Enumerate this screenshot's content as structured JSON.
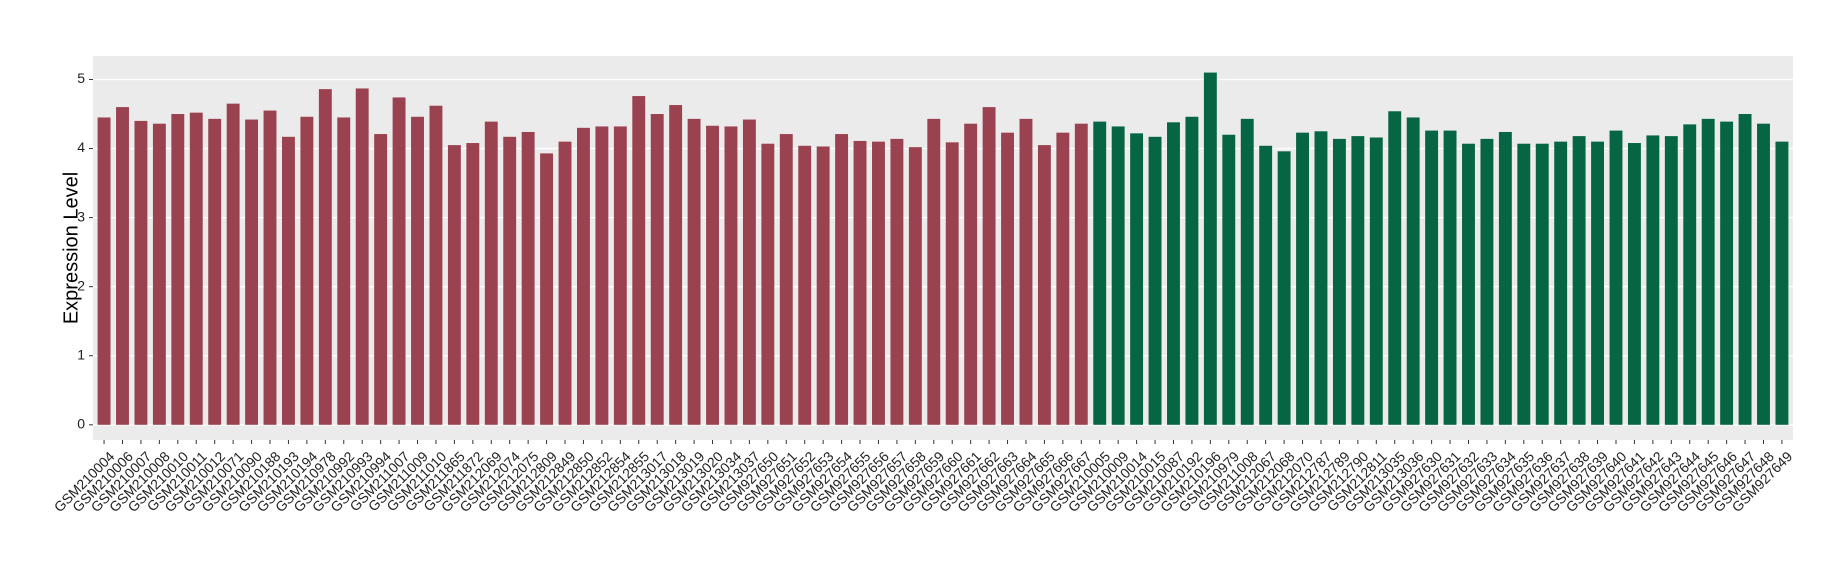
{
  "chart_data": {
    "type": "bar",
    "y_label": "Expression Level",
    "categories": [
      "GSM210004",
      "GSM210006",
      "GSM210007",
      "GSM210008",
      "GSM210010",
      "GSM210011",
      "GSM210012",
      "GSM210071",
      "GSM210090",
      "GSM210188",
      "GSM210193",
      "GSM210194",
      "GSM210978",
      "GSM210992",
      "GSM210993",
      "GSM210994",
      "GSM211007",
      "GSM211009",
      "GSM211010",
      "GSM211865",
      "GSM211872",
      "GSM212069",
      "GSM212074",
      "GSM212075",
      "GSM212809",
      "GSM212849",
      "GSM212850",
      "GSM212852",
      "GSM212854",
      "GSM212855",
      "GSM213017",
      "GSM213018",
      "GSM213019",
      "GSM213020",
      "GSM213034",
      "GSM213037",
      "GSM927650",
      "GSM927651",
      "GSM927652",
      "GSM927653",
      "GSM927654",
      "GSM927655",
      "GSM927656",
      "GSM927657",
      "GSM927658",
      "GSM927659",
      "GSM927660",
      "GSM927661",
      "GSM927662",
      "GSM927663",
      "GSM927664",
      "GSM927665",
      "GSM927666",
      "GSM927667",
      "GSM210005",
      "GSM210009",
      "GSM210014",
      "GSM210015",
      "GSM210087",
      "GSM210192",
      "GSM210196",
      "GSM210979",
      "GSM211008",
      "GSM212067",
      "GSM212068",
      "GSM212070",
      "GSM212787",
      "GSM212789",
      "GSM212790",
      "GSM212811",
      "GSM213035",
      "GSM213036",
      "GSM927630",
      "GSM927631",
      "GSM927632",
      "GSM927633",
      "GSM927634",
      "GSM927635",
      "GSM927636",
      "GSM927637",
      "GSM927638",
      "GSM927639",
      "GSM927640",
      "GSM927641",
      "GSM927642",
      "GSM927643",
      "GSM927644",
      "GSM927645",
      "GSM927646",
      "GSM927647",
      "GSM927648",
      "GSM927649"
    ],
    "values": [
      4.45,
      4.6,
      4.4,
      4.36,
      4.5,
      4.52,
      4.43,
      4.65,
      4.42,
      4.55,
      4.17,
      4.46,
      4.86,
      4.45,
      4.87,
      4.21,
      4.74,
      4.46,
      4.62,
      4.05,
      4.08,
      4.39,
      4.17,
      4.24,
      3.93,
      4.1,
      4.3,
      4.32,
      4.32,
      4.76,
      4.5,
      4.63,
      4.43,
      4.33,
      4.32,
      4.42,
      4.07,
      4.21,
      4.04,
      4.03,
      4.21,
      4.11,
      4.1,
      4.14,
      4.02,
      4.43,
      4.09,
      4.36,
      4.6,
      4.23,
      4.43,
      4.05,
      4.23,
      4.36,
      4.39,
      4.32,
      4.22,
      4.17,
      4.38,
      4.46,
      5.1,
      4.2,
      4.43,
      4.04,
      3.96,
      4.23,
      4.25,
      4.14,
      4.18,
      4.16,
      4.54,
      4.45,
      4.26,
      4.26,
      4.07,
      4.14,
      4.24,
      4.07,
      4.07,
      4.1,
      4.18,
      4.1,
      4.26,
      4.08,
      4.19,
      4.18,
      4.35,
      4.43,
      4.39,
      4.5,
      4.36,
      4.1
    ],
    "colors": [
      "#9b4250",
      "#9b4250",
      "#9b4250",
      "#9b4250",
      "#9b4250",
      "#9b4250",
      "#9b4250",
      "#9b4250",
      "#9b4250",
      "#9b4250",
      "#9b4250",
      "#9b4250",
      "#9b4250",
      "#9b4250",
      "#9b4250",
      "#9b4250",
      "#9b4250",
      "#9b4250",
      "#9b4250",
      "#9b4250",
      "#9b4250",
      "#9b4250",
      "#9b4250",
      "#9b4250",
      "#9b4250",
      "#9b4250",
      "#9b4250",
      "#9b4250",
      "#9b4250",
      "#9b4250",
      "#9b4250",
      "#9b4250",
      "#9b4250",
      "#9b4250",
      "#9b4250",
      "#9b4250",
      "#9b4250",
      "#9b4250",
      "#9b4250",
      "#9b4250",
      "#9b4250",
      "#9b4250",
      "#9b4250",
      "#9b4250",
      "#9b4250",
      "#9b4250",
      "#9b4250",
      "#9b4250",
      "#9b4250",
      "#9b4250",
      "#9b4250",
      "#9b4250",
      "#9b4250",
      "#9b4250",
      "#066644",
      "#066644",
      "#066644",
      "#066644",
      "#066644",
      "#066644",
      "#066644",
      "#066644",
      "#066644",
      "#066644",
      "#066644",
      "#066644",
      "#066644",
      "#066644",
      "#066644",
      "#066644",
      "#066644",
      "#066644",
      "#066644",
      "#066644",
      "#066644",
      "#066644",
      "#066644",
      "#066644",
      "#066644",
      "#066644",
      "#066644",
      "#066644",
      "#066644",
      "#066644",
      "#066644",
      "#066644",
      "#066644",
      "#066644",
      "#066644",
      "#066644",
      "#066644",
      "#066644"
    ],
    "ylim": [
      -0.22,
      5.34
    ],
    "yticks": [
      0,
      1,
      2,
      3,
      4,
      5
    ],
    "grid": true
  }
}
